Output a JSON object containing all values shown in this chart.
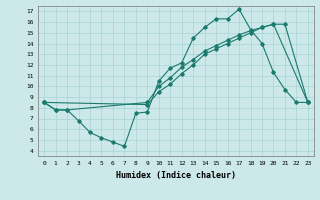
{
  "xlabel": "Humidex (Indice chaleur)",
  "background_color": "#cce8e8",
  "line_color": "#1a7a6e",
  "xlim": [
    -0.5,
    23.5
  ],
  "ylim": [
    3.5,
    17.5
  ],
  "xticks": [
    0,
    1,
    2,
    3,
    4,
    5,
    6,
    7,
    8,
    9,
    10,
    11,
    12,
    13,
    14,
    15,
    16,
    17,
    18,
    19,
    20,
    21,
    22,
    23
  ],
  "yticks": [
    4,
    5,
    6,
    7,
    8,
    9,
    10,
    11,
    12,
    13,
    14,
    15,
    16,
    17
  ],
  "line1_x": [
    0,
    1,
    2,
    3,
    4,
    5,
    6,
    7,
    8,
    9,
    10,
    11,
    12,
    13,
    14,
    15,
    16,
    17,
    18,
    19,
    20,
    21,
    22,
    23
  ],
  "line1_y": [
    8.5,
    7.8,
    7.8,
    6.8,
    5.7,
    5.2,
    4.8,
    4.4,
    7.5,
    7.6,
    10.5,
    11.7,
    12.2,
    14.5,
    15.5,
    16.3,
    16.3,
    17.2,
    15.3,
    14.0,
    11.3,
    9.7,
    8.5,
    8.5
  ],
  "line2_x": [
    0,
    1,
    2,
    9,
    10,
    11,
    12,
    13,
    14,
    15,
    16,
    17,
    18,
    19,
    20,
    23
  ],
  "line2_y": [
    8.5,
    7.8,
    7.8,
    8.5,
    10.0,
    10.8,
    11.8,
    12.5,
    13.3,
    13.8,
    14.3,
    14.8,
    15.2,
    15.5,
    15.8,
    8.5
  ],
  "line3_x": [
    0,
    9,
    10,
    11,
    12,
    13,
    14,
    15,
    16,
    17,
    18,
    19,
    20,
    21,
    23
  ],
  "line3_y": [
    8.5,
    8.3,
    9.5,
    10.2,
    11.2,
    12.0,
    13.0,
    13.5,
    14.0,
    14.5,
    15.0,
    15.5,
    15.8,
    15.8,
    8.5
  ]
}
